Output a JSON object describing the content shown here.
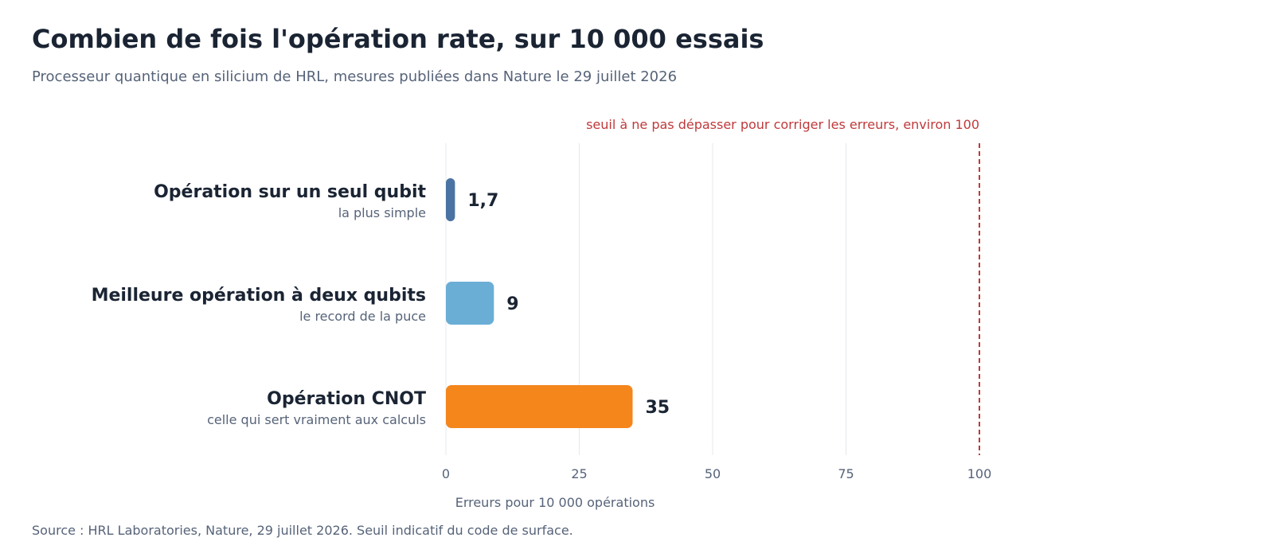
{
  "title": "Combien de fois l'opération rate, sur 10 000 essais",
  "subtitle": "Processeur quantique en silicium de HRL, mesures publiées dans Nature le 29 juillet 2026",
  "source": "Source : HRL Laboratories, Nature, 29 juillet 2026. Seuil indicatif du code de surface.",
  "chart_data": {
    "type": "bar",
    "orientation": "horizontal",
    "categories": [
      "Opération sur un seul qubit",
      "Meilleure opération à deux qubits",
      "Opération CNOT"
    ],
    "category_notes": [
      "la plus simple",
      "le record de la puce",
      "celle qui sert vraiment aux calculs"
    ],
    "values": [
      1.7,
      9,
      35
    ],
    "value_labels": [
      "1,7",
      "9",
      "35"
    ],
    "bar_colors": [
      "#4a73a3",
      "#6aaed6",
      "#f4861c"
    ],
    "xlabel": "Erreurs pour 10 000 opérations",
    "xlim": [
      0,
      100
    ],
    "xticks": [
      0,
      25,
      50,
      75,
      100
    ],
    "grid": true,
    "threshold": {
      "value": 100,
      "label": "seuil à ne pas dépasser pour corriger les erreurs, environ 100",
      "color": "#c0393b"
    }
  }
}
